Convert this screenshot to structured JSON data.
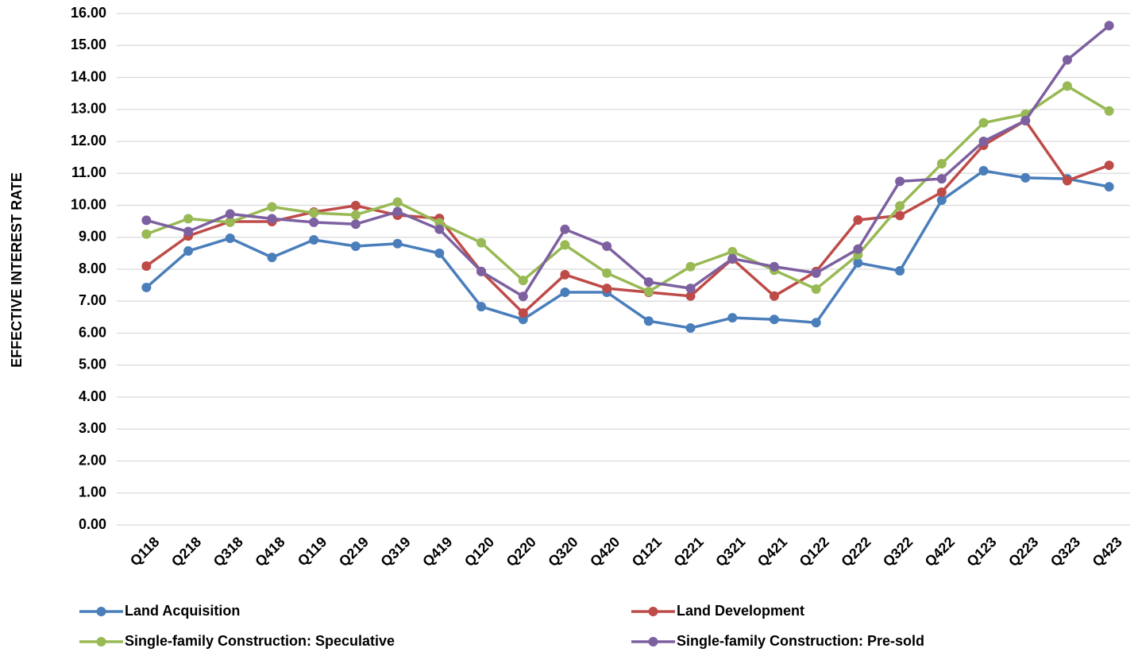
{
  "chart_data": {
    "type": "line",
    "y_label": "EFFECTIVE INTEREST RATE",
    "categories": [
      "Q118",
      "Q218",
      "Q318",
      "Q418",
      "Q119",
      "Q219",
      "Q319",
      "Q419",
      "Q120",
      "Q220",
      "Q320",
      "Q420",
      "Q121",
      "Q221",
      "Q321",
      "Q421",
      "Q122",
      "Q222",
      "Q322",
      "Q422",
      "Q123",
      "Q223",
      "Q323",
      "Q423"
    ],
    "series": [
      {
        "name": "Land Acquisition",
        "color": "#4a7ebb",
        "values": [
          7.43,
          8.57,
          8.97,
          8.37,
          8.92,
          8.72,
          8.8,
          8.5,
          6.83,
          6.43,
          7.28,
          7.28,
          6.38,
          6.16,
          6.48,
          6.43,
          6.33,
          8.2,
          7.95,
          10.16,
          11.08,
          10.86,
          10.83,
          10.58
        ]
      },
      {
        "name": "Land Development",
        "color": "#be4b48",
        "values": [
          8.1,
          9.04,
          9.49,
          9.49,
          9.79,
          9.99,
          9.69,
          9.59,
          7.93,
          6.63,
          7.83,
          7.4,
          7.28,
          7.16,
          8.32,
          7.16,
          7.93,
          9.54,
          9.68,
          10.41,
          11.88,
          12.65,
          10.77,
          11.25
        ]
      },
      {
        "name": "Single-family Construction: Speculative",
        "color": "#98b954",
        "values": [
          9.1,
          9.58,
          9.47,
          9.95,
          9.76,
          9.7,
          10.1,
          9.45,
          8.83,
          7.65,
          8.76,
          7.88,
          7.3,
          8.08,
          8.55,
          7.97,
          7.38,
          8.45,
          9.98,
          11.3,
          12.58,
          12.85,
          13.73,
          12.95
        ]
      },
      {
        "name": "Single-family Construction: Pre-sold",
        "color": "#7d60a0",
        "values": [
          9.53,
          9.18,
          9.73,
          9.58,
          9.47,
          9.41,
          9.8,
          9.25,
          7.93,
          7.15,
          9.25,
          8.72,
          7.6,
          7.4,
          8.33,
          8.08,
          7.88,
          8.63,
          10.75,
          10.83,
          12.0,
          12.65,
          14.55,
          15.62
        ]
      }
    ],
    "ylim": [
      0,
      16
    ],
    "yticks": [
      {
        "value": 0,
        "label": "0.00"
      },
      {
        "value": 1,
        "label": "1.00"
      },
      {
        "value": 2,
        "label": "2.00"
      },
      {
        "value": 3,
        "label": "3.00"
      },
      {
        "value": 4,
        "label": "4.00"
      },
      {
        "value": 5,
        "label": "5.00"
      },
      {
        "value": 6,
        "label": "6.00"
      },
      {
        "value": 7,
        "label": "7.00"
      },
      {
        "value": 8,
        "label": "8.00"
      },
      {
        "value": 9,
        "label": "9.00"
      },
      {
        "value": 10,
        "label": "10.00"
      },
      {
        "value": 11,
        "label": "11.00"
      },
      {
        "value": 12,
        "label": "12.00"
      },
      {
        "value": 13,
        "label": "13.00"
      },
      {
        "value": 14,
        "label": "14.00"
      },
      {
        "value": 15,
        "label": "15.00"
      },
      {
        "value": 16,
        "label": "16.00"
      }
    ],
    "grid": true,
    "legend_position": "bottom"
  }
}
